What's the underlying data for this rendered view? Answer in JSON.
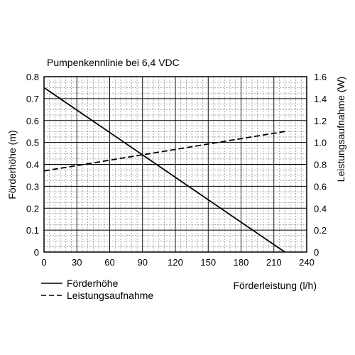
{
  "chart_data": {
    "type": "line",
    "title": "Pumpenkennlinie bei 6,4 VDC",
    "xlabel": "Förderleistung (l/h)",
    "ylabel_left": "Förderhöhe (m)",
    "ylabel_right": "Leistungsaufnahme (W)",
    "xlim": [
      0,
      240
    ],
    "ylim_left": [
      0,
      0.8
    ],
    "ylim_right": [
      0,
      1.6
    ],
    "x_ticks": [
      "0",
      "30",
      "60",
      "90",
      "120",
      "150",
      "180",
      "210",
      "240"
    ],
    "y_left_ticks": [
      "0",
      "0.1",
      "0.2",
      "0.3",
      "0.4",
      "0.5",
      "0.6",
      "0.7",
      "0.8"
    ],
    "y_right_ticks": [
      "0",
      "0.2",
      "0.4",
      "0.6",
      "0.8",
      "1.0",
      "1.2",
      "1.4",
      "1.6"
    ],
    "grid": true,
    "legend_position": "bottom-left",
    "series": [
      {
        "name": "Förderhöhe",
        "axis": "left",
        "style": "solid",
        "x": [
          0,
          220
        ],
        "values": [
          0.75,
          0.0
        ]
      },
      {
        "name": "Leistungsaufnahme",
        "axis": "right",
        "style": "dashed",
        "x": [
          0,
          220
        ],
        "values": [
          0.74,
          1.1
        ]
      }
    ]
  }
}
